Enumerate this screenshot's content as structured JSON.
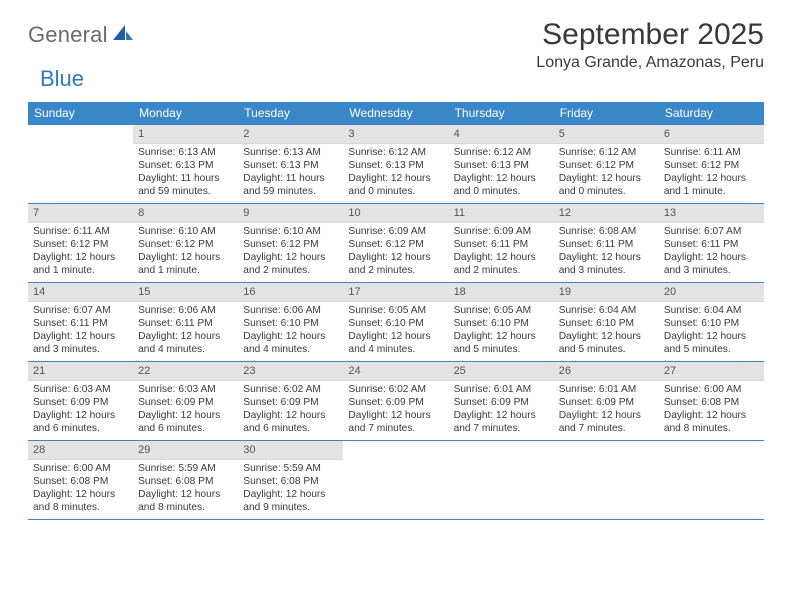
{
  "logo": {
    "general": "General",
    "blue": "Blue"
  },
  "title": "September 2025",
  "location": "Lonya Grande, Amazonas, Peru",
  "colors": {
    "header_bg": "#3a87c7",
    "header_fg": "#ffffff",
    "daynum_bg": "#e3e3e3",
    "text": "#3a3a3a",
    "logo_gray": "#6b6b6b",
    "logo_blue": "#2f79b9",
    "rule": "#3a87c7"
  },
  "day_labels": [
    "Sunday",
    "Monday",
    "Tuesday",
    "Wednesday",
    "Thursday",
    "Friday",
    "Saturday"
  ],
  "weeks": [
    [
      null,
      {
        "n": "1",
        "sr": "Sunrise: 6:13 AM",
        "ss": "Sunset: 6:13 PM",
        "dl": "Daylight: 11 hours and 59 minutes."
      },
      {
        "n": "2",
        "sr": "Sunrise: 6:13 AM",
        "ss": "Sunset: 6:13 PM",
        "dl": "Daylight: 11 hours and 59 minutes."
      },
      {
        "n": "3",
        "sr": "Sunrise: 6:12 AM",
        "ss": "Sunset: 6:13 PM",
        "dl": "Daylight: 12 hours and 0 minutes."
      },
      {
        "n": "4",
        "sr": "Sunrise: 6:12 AM",
        "ss": "Sunset: 6:13 PM",
        "dl": "Daylight: 12 hours and 0 minutes."
      },
      {
        "n": "5",
        "sr": "Sunrise: 6:12 AM",
        "ss": "Sunset: 6:12 PM",
        "dl": "Daylight: 12 hours and 0 minutes."
      },
      {
        "n": "6",
        "sr": "Sunrise: 6:11 AM",
        "ss": "Sunset: 6:12 PM",
        "dl": "Daylight: 12 hours and 1 minute."
      }
    ],
    [
      {
        "n": "7",
        "sr": "Sunrise: 6:11 AM",
        "ss": "Sunset: 6:12 PM",
        "dl": "Daylight: 12 hours and 1 minute."
      },
      {
        "n": "8",
        "sr": "Sunrise: 6:10 AM",
        "ss": "Sunset: 6:12 PM",
        "dl": "Daylight: 12 hours and 1 minute."
      },
      {
        "n": "9",
        "sr": "Sunrise: 6:10 AM",
        "ss": "Sunset: 6:12 PM",
        "dl": "Daylight: 12 hours and 2 minutes."
      },
      {
        "n": "10",
        "sr": "Sunrise: 6:09 AM",
        "ss": "Sunset: 6:12 PM",
        "dl": "Daylight: 12 hours and 2 minutes."
      },
      {
        "n": "11",
        "sr": "Sunrise: 6:09 AM",
        "ss": "Sunset: 6:11 PM",
        "dl": "Daylight: 12 hours and 2 minutes."
      },
      {
        "n": "12",
        "sr": "Sunrise: 6:08 AM",
        "ss": "Sunset: 6:11 PM",
        "dl": "Daylight: 12 hours and 3 minutes."
      },
      {
        "n": "13",
        "sr": "Sunrise: 6:07 AM",
        "ss": "Sunset: 6:11 PM",
        "dl": "Daylight: 12 hours and 3 minutes."
      }
    ],
    [
      {
        "n": "14",
        "sr": "Sunrise: 6:07 AM",
        "ss": "Sunset: 6:11 PM",
        "dl": "Daylight: 12 hours and 3 minutes."
      },
      {
        "n": "15",
        "sr": "Sunrise: 6:06 AM",
        "ss": "Sunset: 6:11 PM",
        "dl": "Daylight: 12 hours and 4 minutes."
      },
      {
        "n": "16",
        "sr": "Sunrise: 6:06 AM",
        "ss": "Sunset: 6:10 PM",
        "dl": "Daylight: 12 hours and 4 minutes."
      },
      {
        "n": "17",
        "sr": "Sunrise: 6:05 AM",
        "ss": "Sunset: 6:10 PM",
        "dl": "Daylight: 12 hours and 4 minutes."
      },
      {
        "n": "18",
        "sr": "Sunrise: 6:05 AM",
        "ss": "Sunset: 6:10 PM",
        "dl": "Daylight: 12 hours and 5 minutes."
      },
      {
        "n": "19",
        "sr": "Sunrise: 6:04 AM",
        "ss": "Sunset: 6:10 PM",
        "dl": "Daylight: 12 hours and 5 minutes."
      },
      {
        "n": "20",
        "sr": "Sunrise: 6:04 AM",
        "ss": "Sunset: 6:10 PM",
        "dl": "Daylight: 12 hours and 5 minutes."
      }
    ],
    [
      {
        "n": "21",
        "sr": "Sunrise: 6:03 AM",
        "ss": "Sunset: 6:09 PM",
        "dl": "Daylight: 12 hours and 6 minutes."
      },
      {
        "n": "22",
        "sr": "Sunrise: 6:03 AM",
        "ss": "Sunset: 6:09 PM",
        "dl": "Daylight: 12 hours and 6 minutes."
      },
      {
        "n": "23",
        "sr": "Sunrise: 6:02 AM",
        "ss": "Sunset: 6:09 PM",
        "dl": "Daylight: 12 hours and 6 minutes."
      },
      {
        "n": "24",
        "sr": "Sunrise: 6:02 AM",
        "ss": "Sunset: 6:09 PM",
        "dl": "Daylight: 12 hours and 7 minutes."
      },
      {
        "n": "25",
        "sr": "Sunrise: 6:01 AM",
        "ss": "Sunset: 6:09 PM",
        "dl": "Daylight: 12 hours and 7 minutes."
      },
      {
        "n": "26",
        "sr": "Sunrise: 6:01 AM",
        "ss": "Sunset: 6:09 PM",
        "dl": "Daylight: 12 hours and 7 minutes."
      },
      {
        "n": "27",
        "sr": "Sunrise: 6:00 AM",
        "ss": "Sunset: 6:08 PM",
        "dl": "Daylight: 12 hours and 8 minutes."
      }
    ],
    [
      {
        "n": "28",
        "sr": "Sunrise: 6:00 AM",
        "ss": "Sunset: 6:08 PM",
        "dl": "Daylight: 12 hours and 8 minutes."
      },
      {
        "n": "29",
        "sr": "Sunrise: 5:59 AM",
        "ss": "Sunset: 6:08 PM",
        "dl": "Daylight: 12 hours and 8 minutes."
      },
      {
        "n": "30",
        "sr": "Sunrise: 5:59 AM",
        "ss": "Sunset: 6:08 PM",
        "dl": "Daylight: 12 hours and 9 minutes."
      },
      null,
      null,
      null,
      null
    ]
  ]
}
